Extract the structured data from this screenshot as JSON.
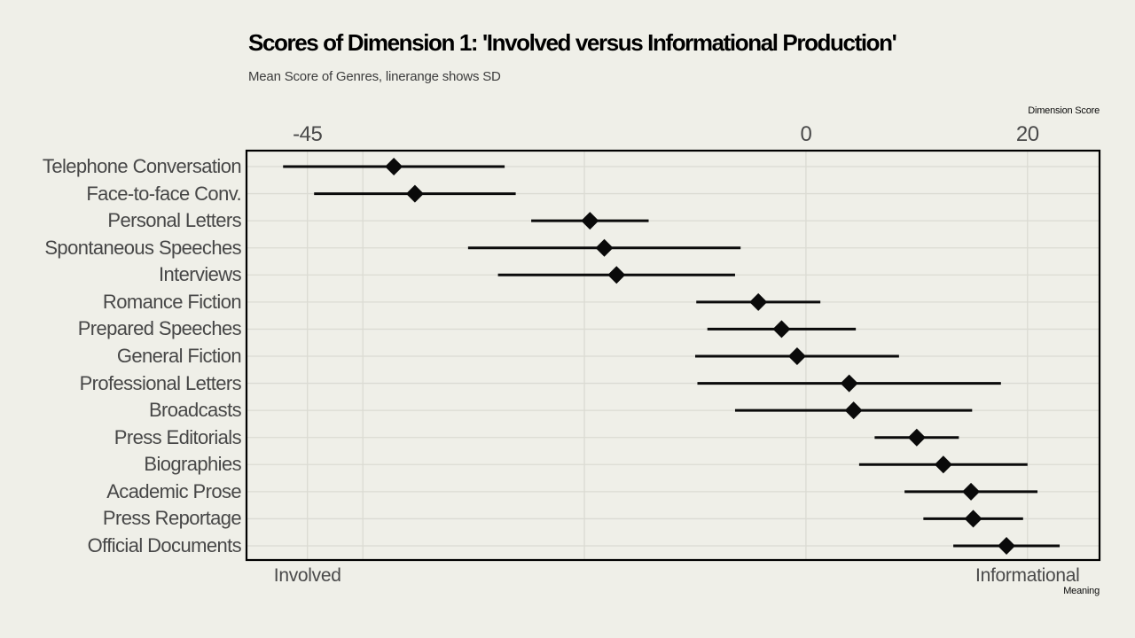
{
  "chart_data": {
    "type": "scatter",
    "variant": "pointrange-horizontal",
    "marker": "diamond",
    "error_bar_meaning": "linerange shows SD",
    "title": "Scores of Dimension 1: 'Involved versus Informational Production'",
    "subtitle": "Mean Score of Genres, linerange shows SD",
    "xlabel_top": "Dimension Score",
    "xlabel_bottom": "Meaning",
    "ylabel": "",
    "legend": "none",
    "grid": "on",
    "categories": [
      "Telephone Conversation",
      "Face-to-face Conv.",
      "Personal Letters",
      "Spontaneous Speeches",
      "Interviews",
      "Romance Fiction",
      "Prepared Speeches",
      "General Fiction",
      "Professional Letters",
      "Broadcasts",
      "Press Editorials",
      "Biographies",
      "Academic Prose",
      "Press Reportage",
      "Official Documents"
    ],
    "series": [
      {
        "name": "mean",
        "values": [
          -37.2,
          -35.3,
          -19.5,
          -18.2,
          -17.1,
          -4.3,
          -2.2,
          -0.8,
          3.9,
          4.3,
          10.0,
          12.4,
          14.9,
          15.1,
          18.1
        ]
      },
      {
        "name": "sd",
        "values": [
          10.0,
          9.1,
          5.3,
          12.3,
          10.7,
          5.6,
          6.7,
          9.2,
          13.7,
          10.7,
          3.8,
          7.6,
          6.0,
          4.5,
          4.8
        ]
      }
    ],
    "x_ticks_top": [
      {
        "value": -45,
        "label": "-45"
      },
      {
        "value": 0,
        "label": "0"
      },
      {
        "value": 20,
        "label": "20"
      }
    ],
    "x_ticks_bottom": [
      {
        "value": -45,
        "label": "Involved"
      },
      {
        "value": 20,
        "label": "Informational"
      }
    ],
    "x_gridlines": [
      -45,
      -40,
      -20,
      0,
      20
    ],
    "xlim": [
      -50.5,
      26.5
    ],
    "colors": {
      "background": "#EFEFE8",
      "grid": "#DBDBD3",
      "panel_border": "#000000",
      "marker": "#0A0A0A",
      "range_line": "#0A0A0A",
      "tick_text": "#4A4A4A",
      "title_text": "#000000",
      "subtitle_text": "#3D3D3D"
    }
  }
}
